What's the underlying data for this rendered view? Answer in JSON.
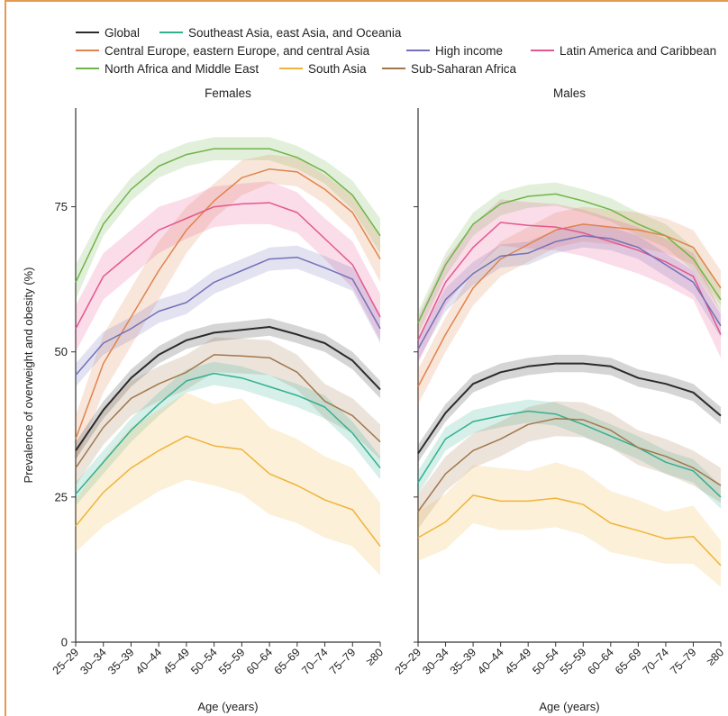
{
  "colors": {
    "Global": "#2b2b2b",
    "Southeast Asia, east Asia, and Oceania": "#33b08f",
    "Central Europe, eastern Europe, and central Asia": "#e0834a",
    "High income": "#7470b8",
    "Latin America and Caribbean": "#e4578e",
    "North Africa and Middle East": "#6fb549",
    "South Asia": "#f0b43a",
    "Sub-Saharan Africa": "#a2774a"
  },
  "legend": [
    "Global",
    "Southeast Asia, east Asia, and Oceania",
    "Central Europe, eastern Europe, and central Asia",
    "High income",
    "Latin America and Caribbean",
    "North Africa and Middle East",
    "South Asia",
    "Sub-Saharan Africa"
  ],
  "chart_data": [
    {
      "type": "line",
      "title": "Females",
      "xlabel": "Age (years)",
      "ylabel": "Prevalence of overweight and obesity (%)",
      "ylim": [
        0,
        92
      ],
      "yticks": [
        0,
        25,
        50,
        75
      ],
      "x": [
        "25–29",
        "30–34",
        "35–39",
        "40–44",
        "45–49",
        "50–54",
        "55–59",
        "60–64",
        "65–69",
        "70–74",
        "75–79",
        "≥80"
      ],
      "series": [
        {
          "name": "North Africa and Middle East",
          "values": [
            62,
            72,
            78,
            82,
            84,
            85,
            85,
            85,
            83.5,
            81,
            77,
            70
          ],
          "lower": [
            59,
            70,
            76,
            80,
            82,
            83,
            83,
            83,
            81.5,
            79,
            74.5,
            67
          ],
          "upper": [
            65,
            74,
            80,
            84,
            86,
            87,
            87,
            87,
            85.5,
            83,
            79.5,
            73
          ]
        },
        {
          "name": "Central Europe, eastern Europe, and central Asia",
          "values": [
            35,
            48,
            56,
            64,
            71,
            76,
            80,
            81.5,
            81,
            78,
            74,
            66
          ],
          "lower": [
            31,
            43,
            51,
            59,
            67,
            73,
            77,
            79,
            78.5,
            75.5,
            71,
            62
          ],
          "upper": [
            39,
            53,
            61,
            69,
            75,
            79,
            83,
            84,
            83.5,
            80.5,
            77,
            70
          ]
        },
        {
          "name": "Latin America and Caribbean",
          "values": [
            54,
            63,
            67,
            71,
            73,
            75,
            75.5,
            75.7,
            74,
            69.5,
            65,
            56
          ],
          "lower": [
            50,
            59,
            63,
            67,
            69.5,
            71.5,
            72,
            72,
            70.5,
            66,
            61,
            52
          ],
          "upper": [
            58,
            67,
            71,
            75,
            76.5,
            78.5,
            79,
            79.4,
            77.5,
            73,
            69,
            60
          ]
        },
        {
          "name": "High income",
          "values": [
            46,
            51.5,
            54,
            57,
            58.5,
            62,
            64,
            66,
            66.3,
            64.5,
            62.5,
            54
          ],
          "lower": [
            44,
            49.5,
            52,
            55,
            56.5,
            60,
            62,
            64,
            64.3,
            62.5,
            60.5,
            51.5
          ],
          "upper": [
            48,
            53.5,
            56,
            59,
            60.5,
            64,
            66,
            68,
            68.3,
            66.5,
            64.5,
            56.5
          ]
        },
        {
          "name": "Global",
          "values": [
            33,
            40,
            45.5,
            49.5,
            52,
            53.3,
            53.8,
            54.3,
            53,
            51.5,
            48.5,
            43.5
          ],
          "lower": [
            31.5,
            38.5,
            44,
            48,
            50.5,
            51.8,
            52.3,
            52.8,
            51.5,
            50,
            47,
            42
          ],
          "upper": [
            34.5,
            41.5,
            47,
            51,
            53.5,
            54.8,
            55.3,
            55.8,
            54.5,
            53,
            50,
            45
          ]
        },
        {
          "name": "Sub-Saharan Africa",
          "values": [
            30,
            37,
            42,
            44.5,
            46.5,
            49.5,
            49.3,
            49,
            46.5,
            41.5,
            39,
            34.5
          ],
          "lower": [
            27,
            34,
            39,
            41.5,
            43.5,
            46.5,
            46.3,
            46,
            43.5,
            38.5,
            36,
            31.5
          ],
          "upper": [
            33,
            40,
            45,
            47.5,
            49.5,
            52.5,
            52.3,
            52,
            49.5,
            44.5,
            42,
            37.5
          ]
        },
        {
          "name": "Southeast Asia, east Asia, and Oceania",
          "values": [
            25.5,
            31,
            36.5,
            41,
            45,
            46.3,
            45.5,
            44,
            42.5,
            40.5,
            36,
            30
          ],
          "lower": [
            23.5,
            29,
            34.5,
            39,
            43,
            44.3,
            43.5,
            42,
            40.5,
            38.5,
            34,
            28
          ],
          "upper": [
            27.5,
            33,
            38.5,
            43,
            47,
            48.3,
            47.5,
            46,
            44.5,
            42.5,
            38,
            32
          ]
        },
        {
          "name": "South Asia",
          "values": [
            20,
            25.8,
            30,
            33,
            35.5,
            33.8,
            33.2,
            29,
            27,
            24.5,
            22.8,
            16.5
          ],
          "lower": [
            15.5,
            20,
            23,
            26,
            28,
            27,
            25.5,
            22,
            20.5,
            18,
            16.5,
            11.5
          ],
          "upper": [
            24.5,
            31.5,
            37,
            40,
            43,
            41,
            42,
            37,
            35,
            32,
            30,
            24
          ]
        }
      ]
    },
    {
      "type": "line",
      "title": "Males",
      "xlabel": "Age (years)",
      "ylabel": "",
      "ylim": [
        0,
        92
      ],
      "yticks": [
        0,
        25,
        50,
        75
      ],
      "x": [
        "25–29",
        "30–34",
        "35–39",
        "40–44",
        "45–49",
        "50–54",
        "55–59",
        "60–64",
        "65–69",
        "70–74",
        "75–79",
        "≥80"
      ],
      "series": [
        {
          "name": "North Africa and Middle East",
          "values": [
            55,
            65,
            72,
            75.5,
            76.8,
            77.2,
            76,
            74.5,
            72,
            70,
            66,
            59
          ],
          "lower": [
            53,
            63,
            70,
            73.5,
            74.8,
            75.2,
            74,
            72.5,
            70,
            68,
            64,
            57
          ],
          "upper": [
            57,
            67,
            74,
            77.5,
            78.8,
            79.2,
            78,
            76.5,
            74,
            72,
            68,
            61
          ]
        },
        {
          "name": "Central Europe, eastern Europe, and central Asia",
          "values": [
            44,
            53,
            61,
            66,
            68.5,
            71,
            72,
            71.5,
            71,
            70,
            68,
            61
          ],
          "lower": [
            41,
            50,
            58,
            63,
            65.5,
            68,
            69,
            68.5,
            68,
            67,
            65,
            58
          ],
          "upper": [
            47,
            56,
            64,
            69,
            71.5,
            74,
            75,
            74.5,
            74,
            73,
            71,
            64
          ]
        },
        {
          "name": "Latin America and Caribbean",
          "values": [
            52,
            62,
            68,
            72.3,
            71.8,
            71.5,
            70.5,
            69,
            67.5,
            65.5,
            63,
            53
          ],
          "lower": [
            48,
            58,
            64,
            68.3,
            67.8,
            67.5,
            66.5,
            65,
            63.5,
            61.5,
            59,
            49
          ],
          "upper": [
            56,
            66,
            72,
            76.3,
            75.8,
            75.5,
            74.5,
            73,
            71.5,
            69.5,
            67,
            57
          ]
        },
        {
          "name": "High income",
          "values": [
            50.5,
            59,
            63.5,
            66.5,
            67,
            69,
            70,
            69.5,
            68,
            65,
            62,
            54.5
          ],
          "lower": [
            48.5,
            57,
            61.5,
            64.5,
            65,
            67,
            68,
            67.5,
            66,
            63,
            60,
            52.5
          ],
          "upper": [
            52.5,
            61,
            65.5,
            68.5,
            69,
            71,
            72,
            71.5,
            70,
            67,
            64,
            56.5
          ]
        },
        {
          "name": "Global",
          "values": [
            32.5,
            39.5,
            44.5,
            46.5,
            47.5,
            48,
            48,
            47.5,
            45.5,
            44.5,
            43,
            39
          ],
          "lower": [
            31,
            38,
            43,
            45,
            46,
            46.5,
            46.5,
            46,
            44,
            43,
            41.5,
            37.5
          ],
          "upper": [
            34,
            41,
            46,
            48,
            49,
            49.5,
            49.5,
            49,
            47,
            46,
            44.5,
            40.5
          ]
        },
        {
          "name": "Southeast Asia, east Asia, and Oceania",
          "values": [
            27.5,
            35,
            38,
            39,
            39.8,
            39.3,
            37.5,
            35.5,
            33.5,
            31,
            29.5,
            25
          ],
          "lower": [
            25.5,
            33,
            36,
            37,
            37.8,
            37.3,
            35.5,
            33.5,
            31.5,
            29,
            27.5,
            23
          ],
          "upper": [
            29.5,
            37,
            40,
            41,
            41.8,
            41.3,
            39.5,
            37.5,
            35.5,
            33,
            31.5,
            27
          ]
        },
        {
          "name": "Sub-Saharan Africa",
          "values": [
            22.5,
            29,
            33,
            35,
            37.5,
            38.5,
            38.3,
            36.5,
            33.5,
            32,
            30,
            27
          ],
          "lower": [
            19.5,
            26,
            30,
            32,
            34.5,
            35.5,
            35.3,
            33.5,
            30.5,
            29,
            27,
            24
          ],
          "upper": [
            25.5,
            32,
            36,
            38,
            40.5,
            41.5,
            41.3,
            39.5,
            36.5,
            35,
            33,
            30
          ]
        },
        {
          "name": "South Asia",
          "values": [
            18,
            20.7,
            25.3,
            24.3,
            24.3,
            24.8,
            23.7,
            20.5,
            19.2,
            17.8,
            18.2,
            13.2
          ],
          "lower": [
            14,
            16,
            20.5,
            19.3,
            19.3,
            19.8,
            18.5,
            15.5,
            14.5,
            13.5,
            13.5,
            9.5
          ],
          "upper": [
            22.5,
            25.5,
            30.5,
            30,
            29.5,
            31,
            29.5,
            26,
            24.5,
            22.5,
            23.5,
            17.5
          ]
        }
      ]
    }
  ]
}
